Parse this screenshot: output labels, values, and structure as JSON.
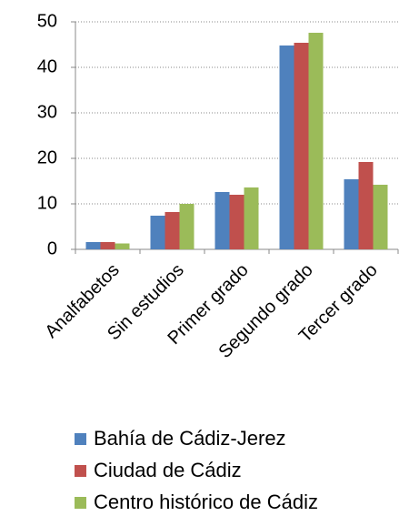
{
  "chart_data": {
    "type": "bar",
    "categories": [
      "Analfabetos",
      "Sin estudios",
      "Primer grado",
      "Segundo grado",
      "Tercer grado"
    ],
    "series": [
      {
        "name": "Bahía de Cádiz-Jerez",
        "color": "#4f81bd",
        "values": [
          1.6,
          7.4,
          12.6,
          44.8,
          15.4
        ]
      },
      {
        "name": "Ciudad de Cádiz",
        "color": "#c0504d",
        "values": [
          1.6,
          8.2,
          12.0,
          45.4,
          19.2
        ]
      },
      {
        "name": "Centro histórico de Cádiz",
        "color": "#9bbb59",
        "values": [
          1.3,
          10.0,
          13.6,
          47.6,
          14.2
        ]
      }
    ],
    "ylim": [
      0,
      50
    ],
    "yticks": [
      0,
      10,
      20,
      30,
      40,
      50
    ],
    "grid": true,
    "legend": "bottom"
  }
}
